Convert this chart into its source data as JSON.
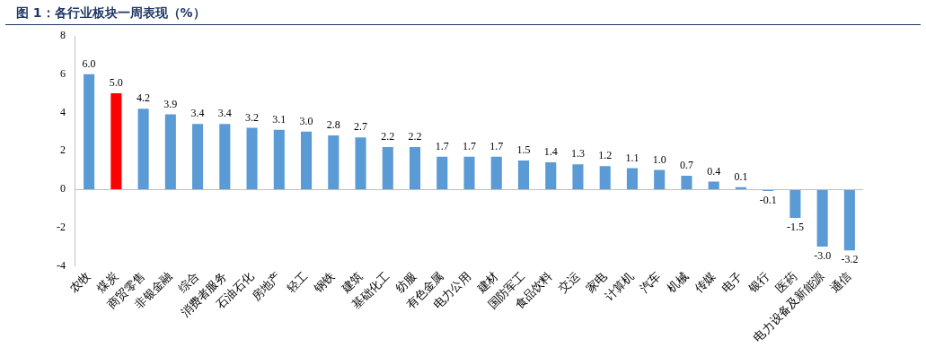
{
  "chart_data": {
    "type": "bar",
    "title": "图 1：各行业板块一周表现（%）",
    "categories": [
      "农牧",
      "煤炭",
      "商贸零售",
      "非银金融",
      "综合",
      "消费者服务",
      "石油石化",
      "房地产",
      "轻工",
      "钢铁",
      "建筑",
      "基础化工",
      "纺服",
      "有色金属",
      "电力公用",
      "建材",
      "国防军工",
      "食品饮料",
      "交运",
      "家电",
      "计算机",
      "汽车",
      "机械",
      "传媒",
      "电子",
      "银行",
      "医药",
      "电力设备及新能源",
      "通信"
    ],
    "values": [
      6.0,
      5.0,
      4.2,
      3.9,
      3.4,
      3.4,
      3.2,
      3.1,
      3.0,
      2.8,
      2.7,
      2.2,
      2.2,
      1.7,
      1.7,
      1.7,
      1.5,
      1.4,
      1.3,
      1.2,
      1.1,
      1.0,
      0.7,
      0.4,
      0.1,
      -0.1,
      -1.5,
      -3.0,
      -3.2
    ],
    "value_labels": [
      "6.0",
      "5.0",
      "4.2",
      "3.9",
      "3.4",
      "3.4",
      "3.2",
      "3.1",
      "3.0",
      "2.8",
      "2.7",
      "2.2",
      "2.2",
      "1.7",
      "1.7",
      "1.7",
      "1.5",
      "1.4",
      "1.3",
      "1.2",
      "1.1",
      "1.0",
      "0.7",
      "0.4",
      "0.1",
      "-0.1",
      "-1.5",
      "-3.0",
      "-3.2"
    ],
    "colors": [
      "#5b9bd5",
      "#ff0000",
      "#5b9bd5",
      "#5b9bd5",
      "#5b9bd5",
      "#5b9bd5",
      "#5b9bd5",
      "#5b9bd5",
      "#5b9bd5",
      "#5b9bd5",
      "#5b9bd5",
      "#5b9bd5",
      "#5b9bd5",
      "#5b9bd5",
      "#5b9bd5",
      "#5b9bd5",
      "#5b9bd5",
      "#5b9bd5",
      "#5b9bd5",
      "#5b9bd5",
      "#5b9bd5",
      "#5b9bd5",
      "#5b9bd5",
      "#5b9bd5",
      "#5b9bd5",
      "#5b9bd5",
      "#5b9bd5",
      "#5b9bd5",
      "#5b9bd5"
    ],
    "ylim": [
      -4,
      8
    ],
    "yticks": [
      -4,
      -2,
      0,
      2,
      4,
      6,
      8
    ],
    "grid": false,
    "legend": false
  }
}
